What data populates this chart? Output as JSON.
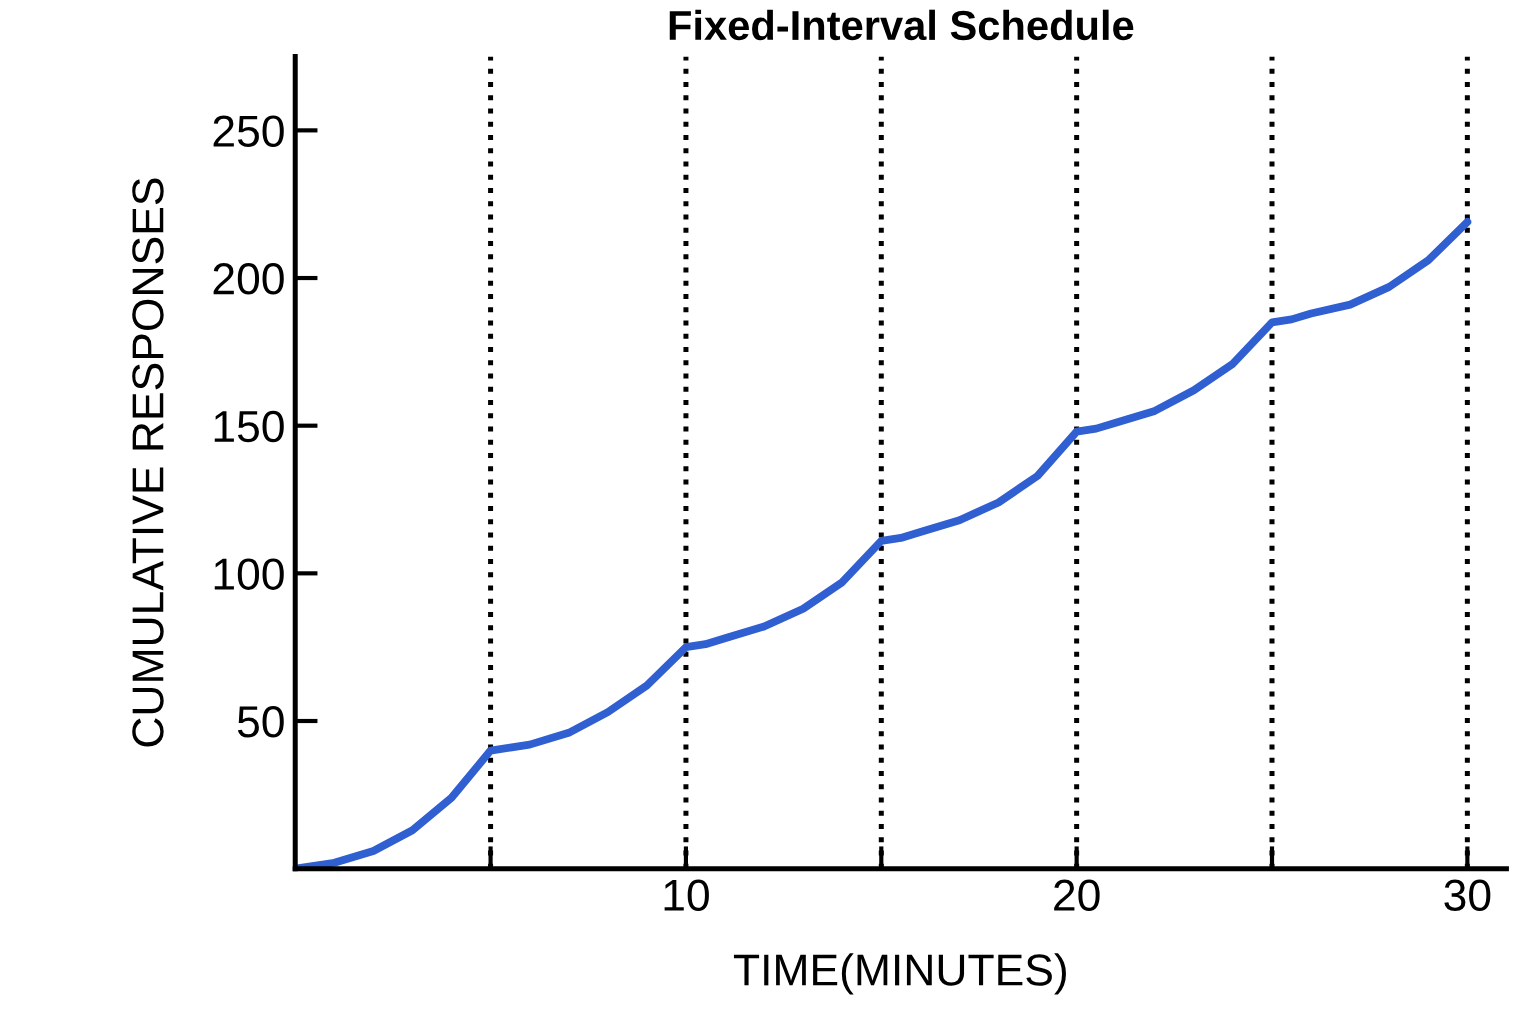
{
  "chart_data": {
    "type": "line",
    "title": "Fixed-Interval Schedule",
    "xlabel": "TIME(MINUTES)",
    "ylabel": "CUMULATIVE RESPONSES",
    "x": [
      0,
      1,
      2,
      3,
      4,
      5,
      5.5,
      6,
      7,
      8,
      9,
      10,
      10.5,
      11,
      12,
      13,
      14,
      15,
      15.5,
      16,
      17,
      18,
      19,
      20,
      20.5,
      21,
      22,
      23,
      24,
      25,
      25.5,
      26,
      27,
      28,
      29,
      30
    ],
    "series": [
      {
        "color": "#2f5fd0",
        "values": [
          0,
          2,
          6,
          13,
          24,
          40,
          41,
          42,
          46,
          53,
          62,
          75,
          76,
          78,
          82,
          88,
          97,
          111,
          112,
          114,
          118,
          124,
          133,
          148,
          149,
          151,
          155,
          162,
          171,
          185,
          186,
          188,
          191,
          197,
          206,
          219
        ]
      }
    ],
    "xlim": [
      0,
      31
    ],
    "ylim": [
      0,
      275
    ],
    "xticks": [
      {
        "value": 5,
        "label": null
      },
      10,
      {
        "value": 15,
        "label": null
      },
      20,
      {
        "value": 25,
        "label": null
      },
      30
    ],
    "yticks": [
      50,
      100,
      150,
      200,
      250
    ],
    "ref_lines": [
      {
        "axis": "x",
        "value": 5,
        "line_style": "dotted",
        "color": "#000000"
      },
      {
        "axis": "x",
        "value": 10,
        "line_style": "dotted",
        "color": "#000000"
      },
      {
        "axis": "x",
        "value": 15,
        "line_style": "dotted",
        "color": "#000000"
      },
      {
        "axis": "x",
        "value": 20,
        "line_style": "dotted",
        "color": "#000000"
      },
      {
        "axis": "x",
        "value": 25,
        "line_style": "dotted",
        "color": "#000000"
      },
      {
        "axis": "x",
        "value": 30,
        "line_style": "dotted",
        "color": "#000000"
      }
    ],
    "grid": false,
    "legend": false,
    "marker": "none",
    "line_style": "solid"
  }
}
